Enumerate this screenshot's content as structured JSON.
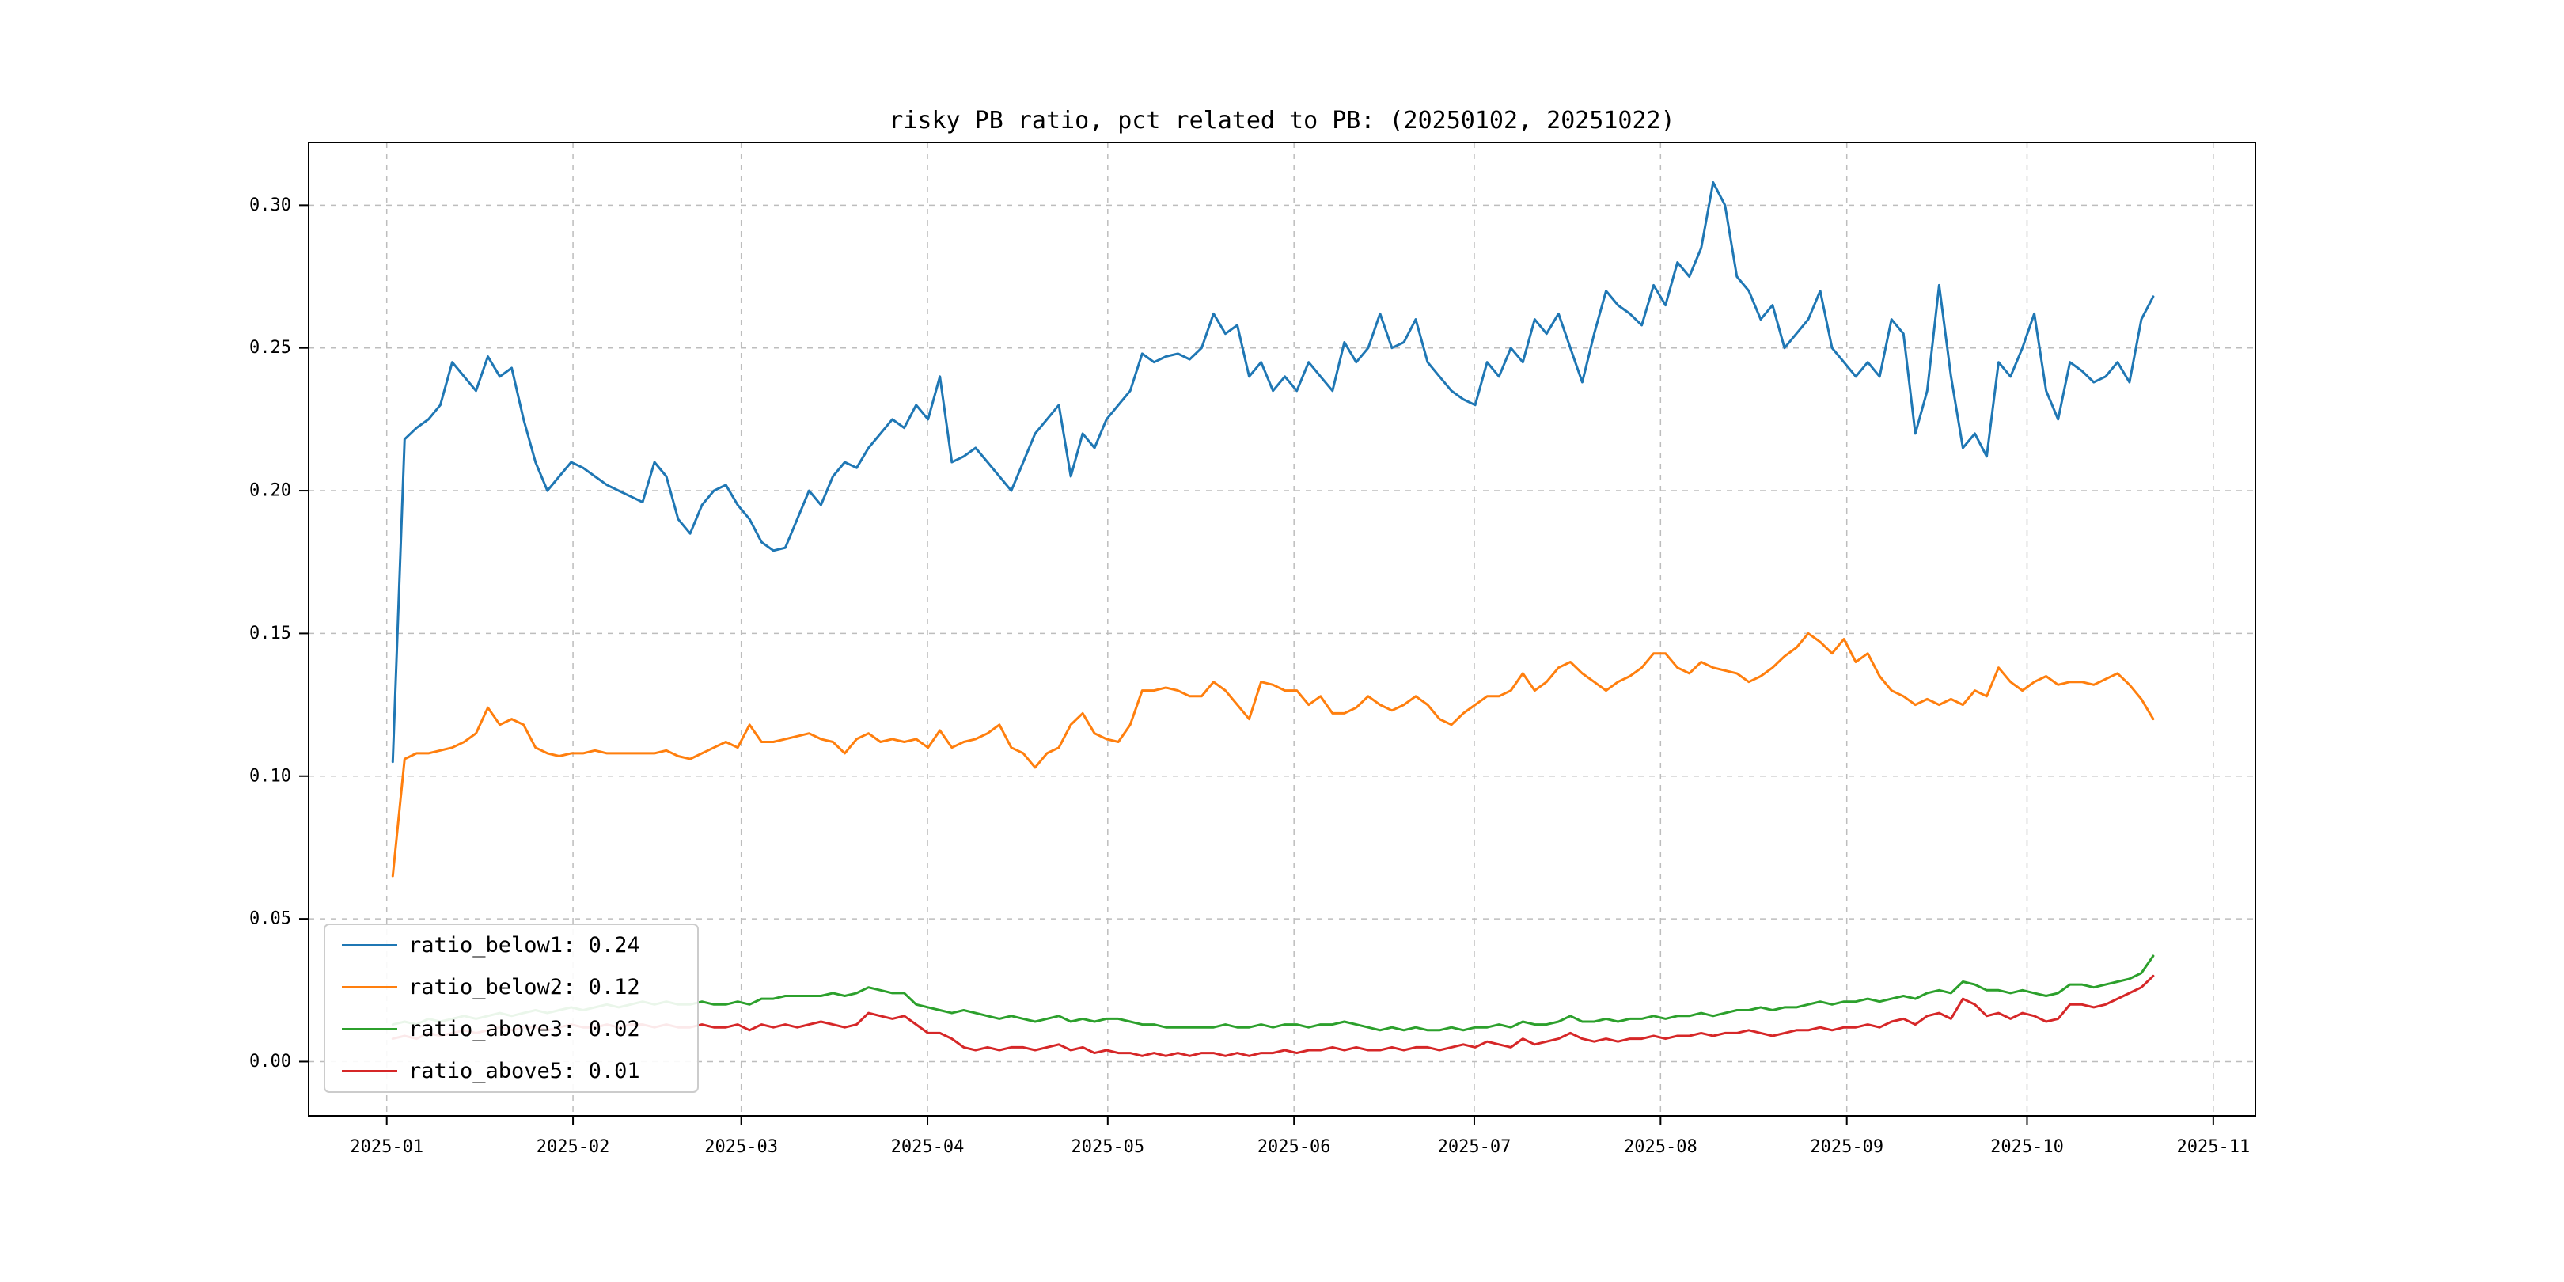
{
  "chart_data": {
    "type": "line",
    "title": "risky PB ratio, pct related to PB: (20250102, 20251022)",
    "xlabel": "",
    "ylabel": "",
    "grid": true,
    "grid_linestyle": "dashed",
    "legend_position": "lower left",
    "x_axis": {
      "unit": "days since 2025-01-01",
      "range": [
        -13,
        311
      ],
      "data_range": [
        1,
        294
      ],
      "tick_positions": [
        0,
        31,
        59,
        90,
        120,
        151,
        181,
        212,
        243,
        273,
        304
      ],
      "tick_labels": [
        "2025-01",
        "2025-02",
        "2025-03",
        "2025-04",
        "2025-05",
        "2025-06",
        "2025-07",
        "2025-08",
        "2025-09",
        "2025-10",
        "2025-11"
      ]
    },
    "y_axis": {
      "range": [
        -0.019,
        0.322
      ],
      "tick_positions": [
        0.0,
        0.05,
        0.1,
        0.15,
        0.2,
        0.25,
        0.3
      ],
      "tick_labels": [
        "0.00",
        "0.05",
        "0.10",
        "0.15",
        "0.20",
        "0.25",
        "0.30"
      ]
    },
    "series": [
      {
        "name": "ratio_below1",
        "legend_label": "ratio_below1: 0.24",
        "color": "#1f77b4",
        "values": [
          0.105,
          0.218,
          0.222,
          0.225,
          0.23,
          0.245,
          0.24,
          0.235,
          0.247,
          0.24,
          0.243,
          0.225,
          0.21,
          0.2,
          0.205,
          0.21,
          0.208,
          0.205,
          0.202,
          0.2,
          0.198,
          0.196,
          0.21,
          0.205,
          0.19,
          0.185,
          0.195,
          0.2,
          0.202,
          0.195,
          0.19,
          0.182,
          0.179,
          0.18,
          0.19,
          0.2,
          0.195,
          0.205,
          0.21,
          0.208,
          0.215,
          0.22,
          0.225,
          0.222,
          0.23,
          0.225,
          0.24,
          0.21,
          0.212,
          0.215,
          0.21,
          0.205,
          0.2,
          0.21,
          0.22,
          0.225,
          0.23,
          0.205,
          0.22,
          0.215,
          0.225,
          0.23,
          0.235,
          0.248,
          0.245,
          0.247,
          0.248,
          0.246,
          0.25,
          0.262,
          0.255,
          0.258,
          0.24,
          0.245,
          0.235,
          0.24,
          0.235,
          0.245,
          0.24,
          0.235,
          0.252,
          0.245,
          0.25,
          0.262,
          0.25,
          0.252,
          0.26,
          0.245,
          0.24,
          0.235,
          0.232,
          0.23,
          0.245,
          0.24,
          0.25,
          0.245,
          0.26,
          0.255,
          0.262,
          0.25,
          0.238,
          0.255,
          0.27,
          0.265,
          0.262,
          0.258,
          0.272,
          0.265,
          0.28,
          0.275,
          0.285,
          0.308,
          0.3,
          0.275,
          0.27,
          0.26,
          0.265,
          0.25,
          0.255,
          0.26,
          0.27,
          0.25,
          0.245,
          0.24,
          0.245,
          0.24,
          0.26,
          0.255,
          0.22,
          0.235,
          0.272,
          0.24,
          0.215,
          0.22,
          0.212,
          0.245,
          0.24,
          0.25,
          0.262,
          0.235,
          0.225,
          0.245,
          0.242,
          0.238,
          0.24,
          0.245,
          0.238,
          0.26,
          0.268
        ]
      },
      {
        "name": "ratio_below2",
        "legend_label": "ratio_below2: 0.12",
        "color": "#ff7f0e",
        "values": [
          0.065,
          0.106,
          0.108,
          0.108,
          0.109,
          0.11,
          0.112,
          0.115,
          0.124,
          0.118,
          0.12,
          0.118,
          0.11,
          0.108,
          0.107,
          0.108,
          0.108,
          0.109,
          0.108,
          0.108,
          0.108,
          0.108,
          0.108,
          0.109,
          0.107,
          0.106,
          0.108,
          0.11,
          0.112,
          0.11,
          0.118,
          0.112,
          0.112,
          0.113,
          0.114,
          0.115,
          0.113,
          0.112,
          0.108,
          0.113,
          0.115,
          0.112,
          0.113,
          0.112,
          0.113,
          0.11,
          0.116,
          0.11,
          0.112,
          0.113,
          0.115,
          0.118,
          0.11,
          0.108,
          0.103,
          0.108,
          0.11,
          0.118,
          0.122,
          0.115,
          0.113,
          0.112,
          0.118,
          0.13,
          0.13,
          0.131,
          0.13,
          0.128,
          0.128,
          0.133,
          0.13,
          0.125,
          0.12,
          0.133,
          0.132,
          0.13,
          0.13,
          0.125,
          0.128,
          0.122,
          0.122,
          0.124,
          0.128,
          0.125,
          0.123,
          0.125,
          0.128,
          0.125,
          0.12,
          0.118,
          0.122,
          0.125,
          0.128,
          0.128,
          0.13,
          0.136,
          0.13,
          0.133,
          0.138,
          0.14,
          0.136,
          0.133,
          0.13,
          0.133,
          0.135,
          0.138,
          0.143,
          0.143,
          0.138,
          0.136,
          0.14,
          0.138,
          0.137,
          0.136,
          0.133,
          0.135,
          0.138,
          0.142,
          0.145,
          0.15,
          0.147,
          0.143,
          0.148,
          0.14,
          0.143,
          0.135,
          0.13,
          0.128,
          0.125,
          0.127,
          0.125,
          0.127,
          0.125,
          0.13,
          0.128,
          0.138,
          0.133,
          0.13,
          0.133,
          0.135,
          0.132,
          0.133,
          0.133,
          0.132,
          0.134,
          0.136,
          0.132,
          0.127,
          0.12
        ]
      },
      {
        "name": "ratio_above3",
        "legend_label": "ratio_above3: 0.02",
        "color": "#2ca02c",
        "values": [
          0.013,
          0.014,
          0.013,
          0.015,
          0.014,
          0.015,
          0.016,
          0.015,
          0.016,
          0.017,
          0.016,
          0.017,
          0.018,
          0.017,
          0.018,
          0.019,
          0.018,
          0.019,
          0.02,
          0.019,
          0.02,
          0.021,
          0.02,
          0.021,
          0.02,
          0.02,
          0.021,
          0.02,
          0.02,
          0.021,
          0.02,
          0.022,
          0.022,
          0.023,
          0.023,
          0.023,
          0.023,
          0.024,
          0.023,
          0.024,
          0.026,
          0.025,
          0.024,
          0.024,
          0.02,
          0.019,
          0.018,
          0.017,
          0.018,
          0.017,
          0.016,
          0.015,
          0.016,
          0.015,
          0.014,
          0.015,
          0.016,
          0.014,
          0.015,
          0.014,
          0.015,
          0.015,
          0.014,
          0.013,
          0.013,
          0.012,
          0.012,
          0.012,
          0.012,
          0.012,
          0.013,
          0.012,
          0.012,
          0.013,
          0.012,
          0.013,
          0.013,
          0.012,
          0.013,
          0.013,
          0.014,
          0.013,
          0.012,
          0.011,
          0.012,
          0.011,
          0.012,
          0.011,
          0.011,
          0.012,
          0.011,
          0.012,
          0.012,
          0.013,
          0.012,
          0.014,
          0.013,
          0.013,
          0.014,
          0.016,
          0.014,
          0.014,
          0.015,
          0.014,
          0.015,
          0.015,
          0.016,
          0.015,
          0.016,
          0.016,
          0.017,
          0.016,
          0.017,
          0.018,
          0.018,
          0.019,
          0.018,
          0.019,
          0.019,
          0.02,
          0.021,
          0.02,
          0.021,
          0.021,
          0.022,
          0.021,
          0.022,
          0.023,
          0.022,
          0.024,
          0.025,
          0.024,
          0.028,
          0.027,
          0.025,
          0.025,
          0.024,
          0.025,
          0.024,
          0.023,
          0.024,
          0.027,
          0.027,
          0.026,
          0.027,
          0.028,
          0.029,
          0.031,
          0.037
        ]
      },
      {
        "name": "ratio_above5",
        "legend_label": "ratio_above5: 0.01",
        "color": "#d62728",
        "values": [
          0.008,
          0.009,
          0.008,
          0.01,
          0.009,
          0.01,
          0.011,
          0.01,
          0.011,
          0.012,
          0.011,
          0.012,
          0.012,
          0.011,
          0.012,
          0.013,
          0.012,
          0.012,
          0.013,
          0.012,
          0.013,
          0.013,
          0.012,
          0.013,
          0.012,
          0.012,
          0.013,
          0.012,
          0.012,
          0.013,
          0.011,
          0.013,
          0.012,
          0.013,
          0.012,
          0.013,
          0.014,
          0.013,
          0.012,
          0.013,
          0.017,
          0.016,
          0.015,
          0.016,
          0.013,
          0.01,
          0.01,
          0.008,
          0.005,
          0.004,
          0.005,
          0.004,
          0.005,
          0.005,
          0.004,
          0.005,
          0.006,
          0.004,
          0.005,
          0.003,
          0.004,
          0.003,
          0.003,
          0.002,
          0.003,
          0.002,
          0.003,
          0.002,
          0.003,
          0.003,
          0.002,
          0.003,
          0.002,
          0.003,
          0.003,
          0.004,
          0.003,
          0.004,
          0.004,
          0.005,
          0.004,
          0.005,
          0.004,
          0.004,
          0.005,
          0.004,
          0.005,
          0.005,
          0.004,
          0.005,
          0.006,
          0.005,
          0.007,
          0.006,
          0.005,
          0.008,
          0.006,
          0.007,
          0.008,
          0.01,
          0.008,
          0.007,
          0.008,
          0.007,
          0.008,
          0.008,
          0.009,
          0.008,
          0.009,
          0.009,
          0.01,
          0.009,
          0.01,
          0.01,
          0.011,
          0.01,
          0.009,
          0.01,
          0.011,
          0.011,
          0.012,
          0.011,
          0.012,
          0.012,
          0.013,
          0.012,
          0.014,
          0.015,
          0.013,
          0.016,
          0.017,
          0.015,
          0.022,
          0.02,
          0.016,
          0.017,
          0.015,
          0.017,
          0.016,
          0.014,
          0.015,
          0.02,
          0.02,
          0.019,
          0.02,
          0.022,
          0.024,
          0.026,
          0.03
        ]
      }
    ]
  }
}
